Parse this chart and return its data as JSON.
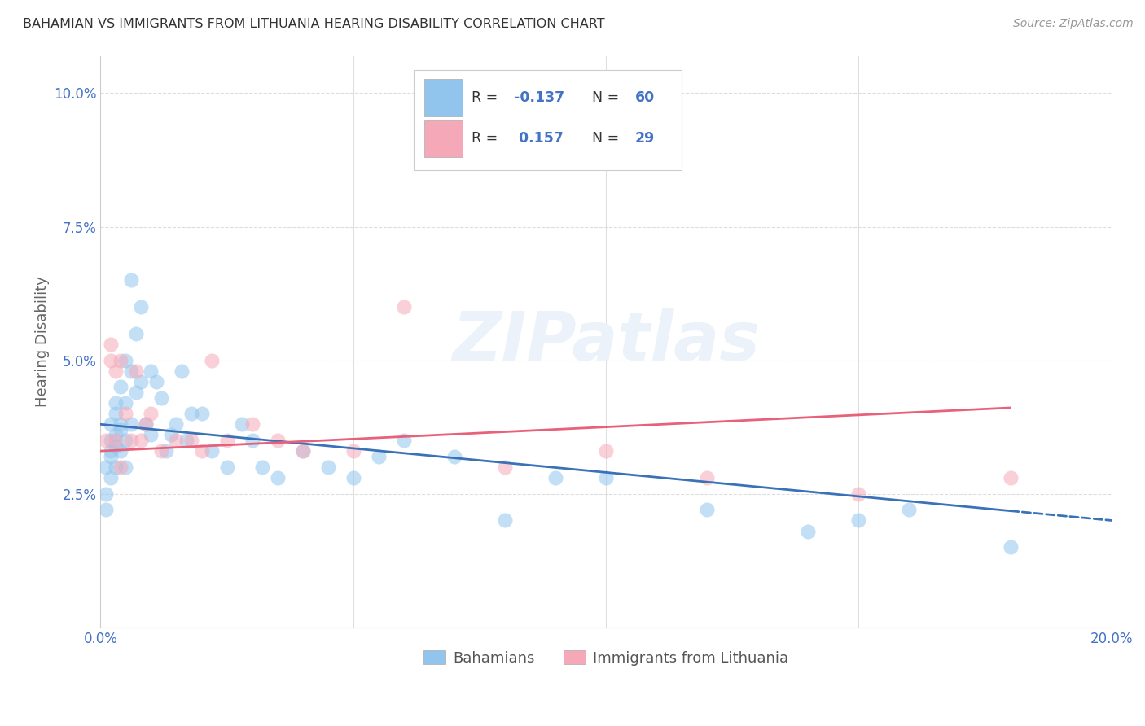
{
  "title": "BAHAMIAN VS IMMIGRANTS FROM LITHUANIA HEARING DISABILITY CORRELATION CHART",
  "source": "Source: ZipAtlas.com",
  "ylabel": "Hearing Disability",
  "xlim": [
    0.0,
    0.2
  ],
  "ylim": [
    0.0,
    0.107
  ],
  "ytick_vals": [
    0.025,
    0.05,
    0.075,
    0.1
  ],
  "ytick_labels": [
    "2.5%",
    "5.0%",
    "7.5%",
    "10.0%"
  ],
  "xtick_vals": [
    0.0,
    0.05,
    0.1,
    0.15,
    0.2
  ],
  "xtick_labels": [
    "0.0%",
    "",
    "",
    "",
    "20.0%"
  ],
  "bahamian_R": -0.137,
  "bahamian_N": 60,
  "lithuania_R": 0.157,
  "lithuania_N": 29,
  "blue_color": "#92C5ED",
  "pink_color": "#F5A8B8",
  "blue_line_color": "#3A72B8",
  "pink_line_color": "#E8607A",
  "legend_label_1": "Bahamians",
  "legend_label_2": "Immigrants from Lithuania",
  "bahamian_x": [
    0.001,
    0.001,
    0.001,
    0.002,
    0.002,
    0.002,
    0.002,
    0.002,
    0.003,
    0.003,
    0.003,
    0.003,
    0.003,
    0.004,
    0.004,
    0.004,
    0.004,
    0.005,
    0.005,
    0.005,
    0.005,
    0.006,
    0.006,
    0.006,
    0.007,
    0.007,
    0.008,
    0.008,
    0.009,
    0.01,
    0.01,
    0.011,
    0.012,
    0.013,
    0.014,
    0.015,
    0.016,
    0.017,
    0.018,
    0.02,
    0.022,
    0.025,
    0.028,
    0.03,
    0.032,
    0.035,
    0.04,
    0.045,
    0.05,
    0.055,
    0.06,
    0.07,
    0.08,
    0.09,
    0.1,
    0.12,
    0.14,
    0.15,
    0.16,
    0.18
  ],
  "bahamian_y": [
    0.03,
    0.025,
    0.022,
    0.035,
    0.038,
    0.033,
    0.028,
    0.032,
    0.04,
    0.036,
    0.042,
    0.034,
    0.03,
    0.045,
    0.038,
    0.033,
    0.037,
    0.05,
    0.042,
    0.035,
    0.03,
    0.065,
    0.048,
    0.038,
    0.055,
    0.044,
    0.06,
    0.046,
    0.038,
    0.048,
    0.036,
    0.046,
    0.043,
    0.033,
    0.036,
    0.038,
    0.048,
    0.035,
    0.04,
    0.04,
    0.033,
    0.03,
    0.038,
    0.035,
    0.03,
    0.028,
    0.033,
    0.03,
    0.028,
    0.032,
    0.035,
    0.032,
    0.02,
    0.028,
    0.028,
    0.022,
    0.018,
    0.02,
    0.022,
    0.015
  ],
  "lithuania_x": [
    0.001,
    0.002,
    0.002,
    0.003,
    0.003,
    0.004,
    0.004,
    0.005,
    0.006,
    0.007,
    0.008,
    0.009,
    0.01,
    0.012,
    0.015,
    0.018,
    0.02,
    0.022,
    0.025,
    0.03,
    0.035,
    0.04,
    0.05,
    0.06,
    0.08,
    0.1,
    0.12,
    0.15,
    0.18
  ],
  "lithuania_y": [
    0.035,
    0.053,
    0.05,
    0.048,
    0.035,
    0.05,
    0.03,
    0.04,
    0.035,
    0.048,
    0.035,
    0.038,
    0.04,
    0.033,
    0.035,
    0.035,
    0.033,
    0.05,
    0.035,
    0.038,
    0.035,
    0.033,
    0.033,
    0.06,
    0.03,
    0.033,
    0.028,
    0.025,
    0.028
  ]
}
